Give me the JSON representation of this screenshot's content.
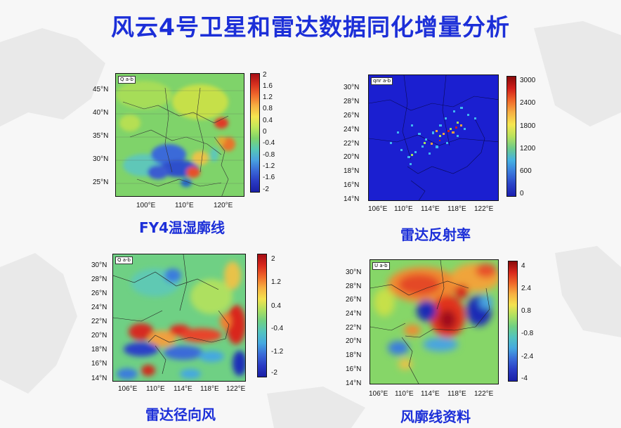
{
  "title": "风云4号卫星和雷达数据同化增量分析",
  "panels": {
    "tl": {
      "tag": "Q a-b",
      "caption": "FY4温湿廓线",
      "ylabels": [
        "45°N",
        "40°N",
        "35°N",
        "30°N",
        "25°N"
      ],
      "xlabels": [
        "100°E",
        "110°E",
        "120°E"
      ],
      "cbar": [
        "2",
        "1.6",
        "1.2",
        "0.8",
        "0.4",
        "0",
        "-0.4",
        "-0.8",
        "-1.2",
        "-1.6",
        "-2"
      ]
    },
    "tr": {
      "tag": "qnr a-b",
      "caption": "雷达反射率",
      "ylabels": [
        "30°N",
        "28°N",
        "26°N",
        "24°N",
        "22°N",
        "20°N",
        "18°N",
        "16°N",
        "14°N"
      ],
      "xlabels": [
        "106°E",
        "110°E",
        "114°E",
        "118°E",
        "122°E"
      ],
      "cbar": [
        "3000",
        "2400",
        "1800",
        "1200",
        "600",
        "0"
      ]
    },
    "bl": {
      "tag": "Q a-b",
      "caption": "雷达径向风",
      "ylabels": [
        "30°N",
        "28°N",
        "26°N",
        "24°N",
        "22°N",
        "20°N",
        "18°N",
        "16°N",
        "14°N"
      ],
      "xlabels": [
        "106°E",
        "110°E",
        "114°E",
        "118°E",
        "122°E"
      ],
      "cbar": [
        "2",
        "1.2",
        "0.4",
        "-0.4",
        "-1.2",
        "-2"
      ]
    },
    "br": {
      "tag": "U a-b",
      "caption": "风廓线资料",
      "ylabels": [
        "30°N",
        "28°N",
        "26°N",
        "24°N",
        "22°N",
        "20°N",
        "18°N",
        "16°N",
        "14°N"
      ],
      "xlabels": [
        "106°E",
        "110°E",
        "114°E",
        "118°E",
        "122°E"
      ],
      "cbar": [
        "4",
        "2.4",
        "0.8",
        "-0.8",
        "-2.4",
        "-4"
      ]
    }
  },
  "colors": {
    "title": "#1c2fd8"
  }
}
